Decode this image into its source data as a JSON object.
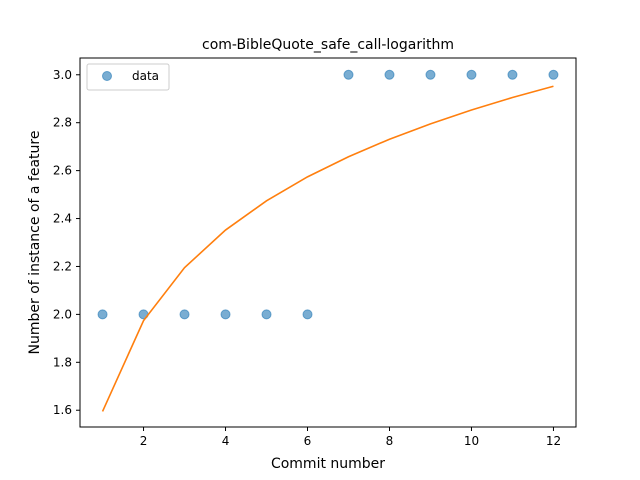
{
  "chart_data": {
    "type": "scatter",
    "title": "com-BibleQuote_safe_call-logarithm",
    "xlabel": "Commit number",
    "ylabel": "Number of instance of a feature",
    "xlim": [
      0.45,
      12.55
    ],
    "ylim": [
      1.53,
      3.07
    ],
    "xticks": [
      2,
      4,
      6,
      8,
      10,
      12
    ],
    "yticks": [
      1.6,
      1.8,
      2.0,
      2.2,
      2.4,
      2.6,
      2.8,
      3.0
    ],
    "grid": false,
    "legend": {
      "position": "top-left"
    },
    "series": [
      {
        "name": "data",
        "kind": "scatter",
        "color": "#1f77b4",
        "x": [
          1,
          2,
          3,
          4,
          5,
          6,
          7,
          8,
          9,
          10,
          11,
          12
        ],
        "y": [
          2,
          2,
          2,
          2,
          2,
          2,
          3,
          3,
          3,
          3,
          3,
          3
        ]
      },
      {
        "kind": "line",
        "color": "#ff7f0e",
        "x": [
          1,
          2,
          3,
          4,
          5,
          6,
          7,
          8,
          9,
          10,
          11,
          12
        ],
        "y": [
          1.595,
          1.974,
          2.195,
          2.352,
          2.474,
          2.574,
          2.658,
          2.731,
          2.795,
          2.853,
          2.905,
          2.952
        ]
      }
    ]
  }
}
